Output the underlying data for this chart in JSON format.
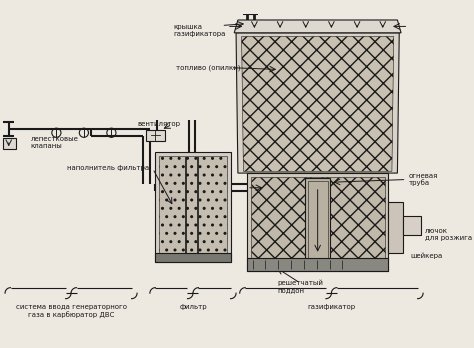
{
  "bg_color": "#ede8e0",
  "line_color": "#1a1a1a",
  "text_color": "#1a1a1a",
  "fig_width": 4.74,
  "fig_height": 3.48,
  "dpi": 100,
  "labels": {
    "kryshka": "крышка\nгазификатора",
    "toplivo": "топливо (опилки)",
    "ventilyator": "вентилятор",
    "lepestkovye": "лепестковые\nклапаны",
    "napolnitel": "наполнитель фильтра",
    "ognevaya": "огневая\nтруба",
    "lyuchok": "лючок\nдля розжига",
    "sheikera": "шейкера",
    "reshetcaty": "решетчатый\nподдон",
    "sistema": "система ввода генераторного\nгаза в карбюратор ДВС",
    "filtr": "фильтр",
    "gazifikator": "газификатор"
  }
}
